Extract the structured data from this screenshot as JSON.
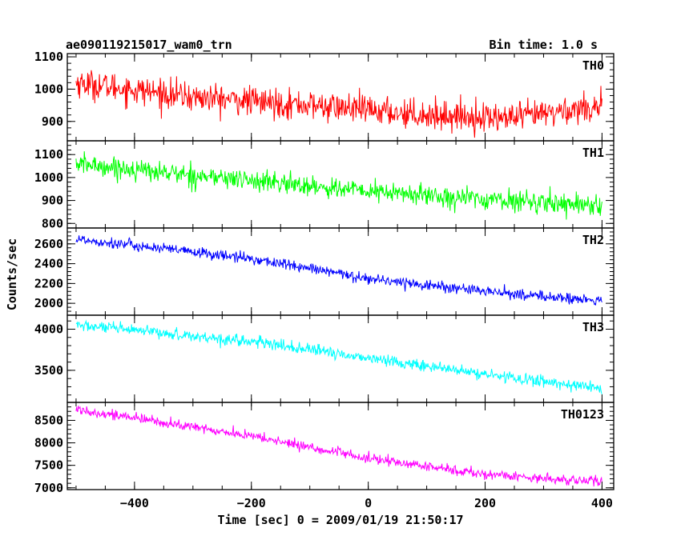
{
  "chart_data": {
    "type": "line",
    "title": "ae090119215017_wam0_trn",
    "subtitle": "Bin time: 1.0 s",
    "xlabel": "Time [sec] 0 = 2009/01/19 21:50:17",
    "ylabel": "Counts/sec",
    "xlim": [
      -515,
      420
    ],
    "x_ticks": [
      -400,
      -200,
      0,
      200,
      400
    ],
    "x_tick_labels": [
      "−400",
      "−200",
      "0",
      "200",
      "400"
    ],
    "x_range": [
      -500,
      400
    ],
    "x_step": 1,
    "grid": false,
    "panels": [
      {
        "name": "TH0",
        "color": "#ff0000",
        "ylim": [
          840,
          1110
        ],
        "y_ticks": [
          900,
          1000,
          1100
        ],
        "y_tick_labels": [
          "900",
          "1000",
          "1100"
        ],
        "trend": {
          "x": [
            -500,
            -300,
            -100,
            100,
            250,
            400
          ],
          "y": [
            1020,
            975,
            950,
            920,
            910,
            950
          ]
        },
        "noise_amplitude": 45
      },
      {
        "name": "TH1",
        "color": "#00ff00",
        "ylim": [
          780,
          1160
        ],
        "y_ticks": [
          800,
          900,
          1000,
          1100
        ],
        "y_tick_labels": [
          "800",
          "900",
          "1000",
          "1100"
        ],
        "trend": {
          "x": [
            -500,
            -300,
            0,
            200,
            400
          ],
          "y": [
            1060,
            1010,
            940,
            905,
            880
          ]
        },
        "noise_amplitude": 45
      },
      {
        "name": "TH2",
        "color": "#0000ff",
        "ylim": [
          1880,
          2760
        ],
        "y_ticks": [
          2000,
          2200,
          2400,
          2600
        ],
        "y_tick_labels": [
          "2000",
          "2200",
          "2400",
          "2600"
        ],
        "trend": {
          "x": [
            -500,
            -200,
            0,
            200,
            400
          ],
          "y": [
            2650,
            2450,
            2250,
            2120,
            2020
          ]
        },
        "noise_amplitude": 55
      },
      {
        "name": "TH3",
        "color": "#00ffff",
        "ylim": [
          3110,
          4170
        ],
        "y_ticks": [
          3500,
          4000
        ],
        "y_tick_labels": [
          "3500",
          "4000"
        ],
        "trend": {
          "x": [
            -500,
            -200,
            0,
            200,
            400
          ],
          "y": [
            4050,
            3850,
            3650,
            3450,
            3280
          ]
        },
        "noise_amplitude": 70
      },
      {
        "name": "TH0123",
        "color": "#ff00ff",
        "ylim": [
          6960,
          8900
        ],
        "y_ticks": [
          7000,
          7500,
          8000,
          8500
        ],
        "y_tick_labels": [
          "7000",
          "7500",
          "8000",
          "8500"
        ],
        "trend": {
          "x": [
            -500,
            -200,
            0,
            200,
            400
          ],
          "y": [
            8750,
            8150,
            7650,
            7300,
            7130
          ]
        },
        "noise_amplitude": 110
      }
    ]
  }
}
